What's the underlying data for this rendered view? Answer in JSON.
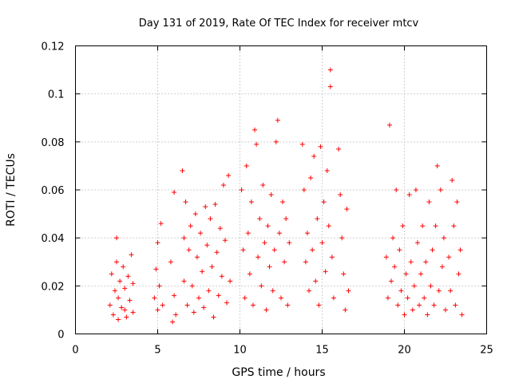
{
  "chart_data": {
    "type": "scatter",
    "title": "Day 131 of 2019, Rate Of TEC Index for receiver mtcv",
    "xlabel": "GPS time / hours",
    "ylabel": "ROTI / TECUs",
    "xlim": [
      0,
      25
    ],
    "ylim": [
      0,
      0.12
    ],
    "x_ticks": [
      "0",
      "5",
      "10",
      "15",
      "20",
      "25"
    ],
    "y_ticks": [
      "0",
      "0.02",
      "0.04",
      "0.06",
      "0.08",
      "0.1",
      "0.12"
    ],
    "grid": true,
    "marker": "plus",
    "color": "#ff0000",
    "series": [
      {
        "x": [
          2.1,
          2.2,
          2.3,
          2.4,
          2.5,
          2.5,
          2.6,
          2.6,
          2.7,
          2.8,
          2.9,
          3.0,
          3.0,
          3.1,
          3.2,
          3.3,
          3.4,
          3.5,
          3.5,
          4.8,
          4.9,
          5.0,
          5.0,
          5.1,
          5.2,
          5.3,
          5.8,
          5.9,
          6.0,
          6.0,
          6.1,
          6.5,
          6.6,
          6.6,
          6.7,
          6.8,
          6.9,
          7.0,
          7.1,
          7.2,
          7.3,
          7.4,
          7.5,
          7.6,
          7.7,
          7.8,
          7.9,
          8.0,
          8.1,
          8.2,
          8.3,
          8.4,
          8.5,
          8.6,
          8.7,
          8.8,
          8.9,
          9.0,
          9.1,
          9.2,
          9.3,
          9.4,
          10.1,
          10.2,
          10.3,
          10.4,
          10.5,
          10.6,
          10.7,
          10.8,
          10.9,
          11.0,
          11.1,
          11.2,
          11.3,
          11.4,
          11.5,
          11.6,
          11.7,
          11.8,
          11.9,
          12.0,
          12.1,
          12.2,
          12.3,
          12.4,
          12.5,
          12.6,
          12.7,
          12.8,
          12.9,
          13.0,
          13.8,
          13.9,
          14.0,
          14.1,
          14.2,
          14.3,
          14.4,
          14.5,
          14.6,
          14.7,
          14.8,
          14.9,
          15.0,
          15.1,
          15.2,
          15.3,
          15.4,
          15.5,
          15.5,
          15.6,
          15.7,
          16.0,
          16.1,
          16.2,
          16.3,
          16.4,
          16.5,
          16.6,
          18.9,
          19.0,
          19.1,
          19.2,
          19.3,
          19.4,
          19.5,
          19.6,
          19.7,
          19.8,
          19.9,
          20.0,
          20.1,
          20.2,
          20.3,
          20.4,
          20.5,
          20.6,
          20.7,
          20.8,
          20.9,
          21.0,
          21.1,
          21.2,
          21.3,
          21.4,
          21.5,
          21.6,
          21.7,
          21.8,
          21.9,
          22.0,
          22.1,
          22.2,
          22.3,
          22.4,
          22.5,
          22.7,
          22.8,
          22.9,
          23.0,
          23.1,
          23.2,
          23.3,
          23.4,
          23.5
        ],
        "y": [
          0.012,
          0.025,
          0.008,
          0.018,
          0.03,
          0.04,
          0.015,
          0.006,
          0.022,
          0.011,
          0.028,
          0.01,
          0.019,
          0.007,
          0.024,
          0.014,
          0.033,
          0.009,
          0.021,
          0.015,
          0.027,
          0.01,
          0.038,
          0.02,
          0.046,
          0.012,
          0.03,
          0.005,
          0.059,
          0.016,
          0.008,
          0.068,
          0.04,
          0.022,
          0.055,
          0.012,
          0.035,
          0.045,
          0.02,
          0.009,
          0.05,
          0.032,
          0.015,
          0.042,
          0.026,
          0.011,
          0.053,
          0.037,
          0.018,
          0.048,
          0.028,
          0.007,
          0.054,
          0.034,
          0.016,
          0.044,
          0.024,
          0.062,
          0.039,
          0.013,
          0.066,
          0.022,
          0.06,
          0.035,
          0.015,
          0.07,
          0.042,
          0.025,
          0.055,
          0.012,
          0.085,
          0.079,
          0.032,
          0.048,
          0.02,
          0.062,
          0.038,
          0.01,
          0.045,
          0.028,
          0.058,
          0.018,
          0.035,
          0.08,
          0.089,
          0.042,
          0.015,
          0.055,
          0.03,
          0.048,
          0.012,
          0.038,
          0.079,
          0.06,
          0.03,
          0.042,
          0.018,
          0.065,
          0.035,
          0.074,
          0.022,
          0.048,
          0.012,
          0.078,
          0.038,
          0.055,
          0.026,
          0.068,
          0.045,
          0.11,
          0.103,
          0.032,
          0.015,
          0.077,
          0.058,
          0.04,
          0.025,
          0.01,
          0.052,
          0.018,
          0.032,
          0.015,
          0.087,
          0.022,
          0.04,
          0.028,
          0.06,
          0.012,
          0.035,
          0.018,
          0.045,
          0.008,
          0.025,
          0.015,
          0.058,
          0.03,
          0.01,
          0.02,
          0.06,
          0.038,
          0.012,
          0.025,
          0.045,
          0.015,
          0.03,
          0.008,
          0.055,
          0.02,
          0.035,
          0.012,
          0.045,
          0.07,
          0.018,
          0.06,
          0.028,
          0.04,
          0.01,
          0.032,
          0.018,
          0.064,
          0.045,
          0.012,
          0.055,
          0.025,
          0.035,
          0.008
        ]
      }
    ]
  }
}
